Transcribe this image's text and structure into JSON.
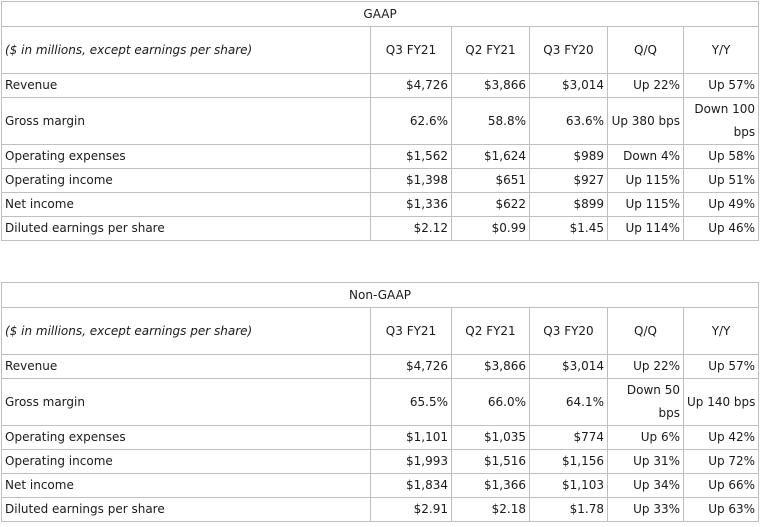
{
  "tables": [
    {
      "title": "GAAP",
      "unit_label": "($ in millions, except earnings per share)",
      "columns": [
        "Q3 FY21",
        "Q2 FY21",
        "Q3 FY20",
        "Q/Q",
        "Y/Y"
      ],
      "rows": [
        {
          "label": "Revenue",
          "values": [
            "$4,726",
            "$3,866",
            "$3,014",
            "Up 22%",
            "Up 57%"
          ]
        },
        {
          "label": "Gross margin",
          "values": [
            "62.6%",
            "58.8%",
            "63.6%",
            "Up 380 bps",
            "Down 100 bps"
          ]
        },
        {
          "label": "Operating expenses",
          "values": [
            "$1,562",
            "$1,624",
            "$989",
            "Down 4%",
            "Up 58%"
          ]
        },
        {
          "label": "Operating income",
          "values": [
            "$1,398",
            "$651",
            "$927",
            "Up 115%",
            "Up 51%"
          ]
        },
        {
          "label": "Net income",
          "values": [
            "$1,336",
            "$622",
            "$899",
            "Up 115%",
            "Up 49%"
          ]
        },
        {
          "label": "Diluted earnings per share",
          "values": [
            "$2.12",
            "$0.99",
            "$1.45",
            "Up 114%",
            "Up 46%"
          ]
        }
      ]
    },
    {
      "title": "Non-GAAP",
      "unit_label": "($ in millions, except earnings per share)",
      "columns": [
        "Q3 FY21",
        "Q2 FY21",
        "Q3 FY20",
        "Q/Q",
        "Y/Y"
      ],
      "rows": [
        {
          "label": "Revenue",
          "values": [
            "$4,726",
            "$3,866",
            "$3,014",
            "Up 22%",
            "Up 57%"
          ]
        },
        {
          "label": "Gross margin",
          "values": [
            "65.5%",
            "66.0%",
            "64.1%",
            "Down 50 bps",
            "Up 140 bps"
          ]
        },
        {
          "label": "Operating expenses",
          "values": [
            "$1,101",
            "$1,035",
            "$774",
            "Up 6%",
            "Up 42%"
          ]
        },
        {
          "label": "Operating income",
          "values": [
            "$1,993",
            "$1,516",
            "$1,156",
            "Up 31%",
            "Up 72%"
          ]
        },
        {
          "label": "Net income",
          "values": [
            "$1,834",
            "$1,366",
            "$1,103",
            "Up 34%",
            "Up 66%"
          ]
        },
        {
          "label": "Diluted earnings per share",
          "values": [
            "$2.91",
            "$2.18",
            "$1.78",
            "Up 33%",
            "Up 63%"
          ]
        }
      ]
    }
  ]
}
